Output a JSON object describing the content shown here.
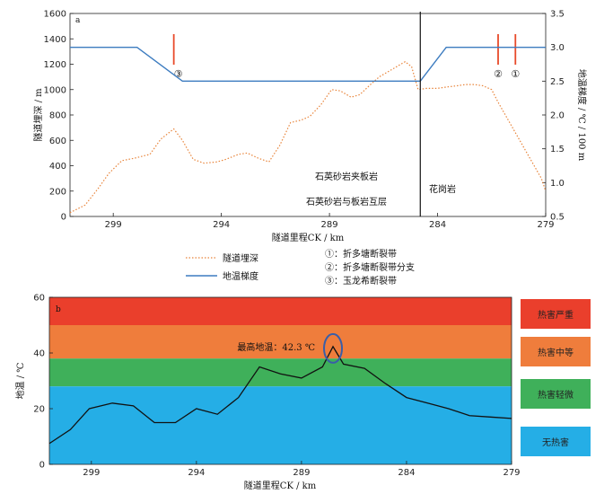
{
  "chart_data": [
    {
      "panel": "a",
      "type": "line",
      "xlabel": "隧道里程CK / km",
      "ylabel": "隧道埋深 / m",
      "y2label": "地温梯度 / ℃ / 100 m",
      "xlim": [
        301,
        279
      ],
      "ylim": [
        0,
        1600
      ],
      "y2lim": [
        0.5,
        3.5
      ],
      "xticks": [
        299,
        294,
        289,
        284,
        279
      ],
      "yticks": [
        0,
        200,
        400,
        600,
        800,
        1000,
        1200,
        1400,
        1600
      ],
      "y2ticks": [
        0.5,
        1.0,
        1.5,
        2.0,
        2.5,
        3.0,
        3.5
      ],
      "series": [
        {
          "name": "隧道埋深",
          "axis": "left",
          "color": "#e8843a",
          "style": "dotted",
          "x": [
            301,
            300.3,
            299.7,
            299.2,
            298.6,
            298,
            297.3,
            296.8,
            296.2,
            295.8,
            295.3,
            294.8,
            294.2,
            293.8,
            293.2,
            292.8,
            292.3,
            291.8,
            291.3,
            290.8,
            290.3,
            289.9,
            289.4,
            288.9,
            288.5,
            288,
            287.6,
            287.1,
            286.7,
            286.3,
            285.9,
            285.5,
            285.2,
            284.9,
            284.5,
            284,
            283.6,
            283.1,
            282.7,
            282.3,
            281.9,
            281.5,
            281.2,
            280.8,
            280.4,
            280,
            279.6,
            279.2,
            279
          ],
          "values": [
            30,
            90,
            220,
            340,
            440,
            460,
            490,
            610,
            690,
            600,
            450,
            420,
            430,
            450,
            490,
            500,
            460,
            430,
            560,
            740,
            760,
            790,
            880,
            1000,
            990,
            940,
            960,
            1040,
            1100,
            1140,
            1180,
            1220,
            1180,
            1000,
            1010,
            1010,
            1020,
            1030,
            1040,
            1040,
            1030,
            1000,
            900,
            780,
            660,
            540,
            420,
            300,
            200
          ]
        },
        {
          "name": "地温梯度",
          "axis": "right",
          "color": "#3d7cc0",
          "style": "solid",
          "x": [
            301,
            297.9,
            295.8,
            284.8,
            283.6,
            279
          ],
          "values": [
            3.0,
            3.0,
            2.5,
            2.5,
            3.0,
            3.0
          ]
        }
      ],
      "fault_lines": [
        {
          "x": 296.2,
          "label": "③",
          "color": "#e84a2a"
        },
        {
          "x": 281.2,
          "label": "②",
          "color": "#e84a2a"
        },
        {
          "x": 280.4,
          "label": "①",
          "color": "#e84a2a"
        }
      ],
      "divider_x": 284.8,
      "annotations": [
        "石英砂岩夹板岩",
        "石英砂岩与板岩互层",
        "花岗岩"
      ],
      "legend": [
        {
          "label": "隧道埋深",
          "color": "#e8843a",
          "style": "dotted"
        },
        {
          "label": "地温梯度",
          "color": "#3d7cc0",
          "style": "solid"
        }
      ],
      "fault_legend": [
        "①：折多塘断裂带",
        "②：折多塘断裂带分支",
        "③：玉龙希断裂带"
      ]
    },
    {
      "panel": "b",
      "type": "line",
      "xlabel": "隧道里程CK / km",
      "ylabel": "地温 / ℃",
      "xlim": [
        301,
        279
      ],
      "ylim": [
        0,
        60
      ],
      "xticks": [
        299,
        294,
        289,
        284,
        279
      ],
      "yticks": [
        0,
        20,
        40,
        60
      ],
      "bands": [
        {
          "from": 50,
          "to": 60,
          "color": "#ea3f2c",
          "label": "热害严重"
        },
        {
          "from": 38,
          "to": 50,
          "color": "#ef7d3c",
          "label": "热害中等"
        },
        {
          "from": 28,
          "to": 38,
          "color": "#3fb05a",
          "label": "热害轻微"
        },
        {
          "from": 0,
          "to": 28,
          "color": "#25aee6",
          "label": "无热害"
        }
      ],
      "series": [
        {
          "name": "地温",
          "color": "#111111",
          "x": [
            301,
            300,
            299.1,
            298,
            297,
            296,
            295,
            294,
            293,
            292,
            291,
            290,
            289,
            288,
            287.5,
            287,
            286,
            285,
            284,
            283,
            282,
            281,
            280,
            279
          ],
          "values": [
            7.5,
            12.5,
            20,
            22,
            21,
            15,
            15,
            20,
            18,
            24,
            35,
            32.5,
            31,
            35,
            42.3,
            36,
            34.5,
            29,
            24,
            22,
            20,
            17.5,
            17,
            16.5
          ]
        }
      ],
      "max_annotation": {
        "text": "最高地温：42.3 ℃",
        "x": 287.5,
        "value": 42.3,
        "color": "#3a5ea8"
      }
    }
  ]
}
